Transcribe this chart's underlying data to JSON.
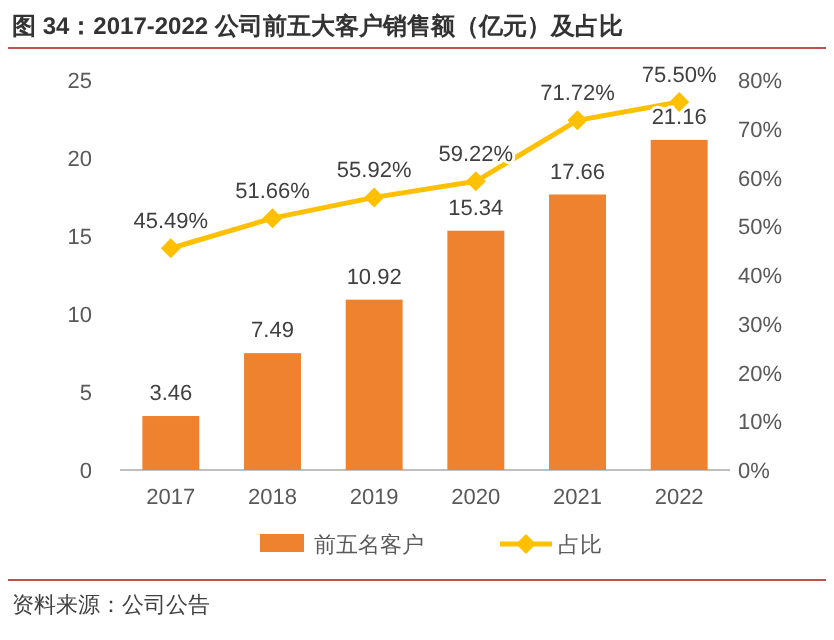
{
  "chart_data": {
    "type": "bar",
    "title": "图 34：2017-2022 公司前五大客户销售额（亿元）及占比",
    "categories": [
      "2017",
      "2018",
      "2019",
      "2020",
      "2021",
      "2022"
    ],
    "series": [
      {
        "name": "前五名客户",
        "color": "#ee822f",
        "values": [
          3.46,
          7.49,
          10.92,
          15.34,
          17.66,
          21.16
        ],
        "value_labels": [
          "3.46",
          "7.49",
          "10.92",
          "15.34",
          "17.66",
          "21.16"
        ]
      },
      {
        "name": "占比",
        "type": "line",
        "axis": "y2",
        "color": "#ffc000",
        "marker": "diamond",
        "values": [
          45.49,
          51.66,
          55.92,
          59.22,
          71.72,
          75.5
        ],
        "value_labels": [
          "45.49%",
          "51.66%",
          "55.92%",
          "59.22%",
          "71.72%",
          "75.50%"
        ]
      }
    ],
    "ylim": [
      0,
      25
    ],
    "yticks": [
      0,
      5,
      10,
      15,
      20,
      25
    ],
    "y2lim": [
      0,
      80
    ],
    "y2ticks": [
      {
        "value": 0,
        "label": "0%"
      },
      {
        "value": 10,
        "label": "10%"
      },
      {
        "value": 20,
        "label": "20%"
      },
      {
        "value": 30,
        "label": "30%"
      },
      {
        "value": 40,
        "label": "40%"
      },
      {
        "value": 50,
        "label": "50%"
      },
      {
        "value": 60,
        "label": "60%"
      },
      {
        "value": 70,
        "label": "70%"
      },
      {
        "value": 80,
        "label": "80%"
      }
    ],
    "legend": "bottom",
    "grid": false,
    "annotations": [
      "资料来源：公司公告"
    ]
  }
}
